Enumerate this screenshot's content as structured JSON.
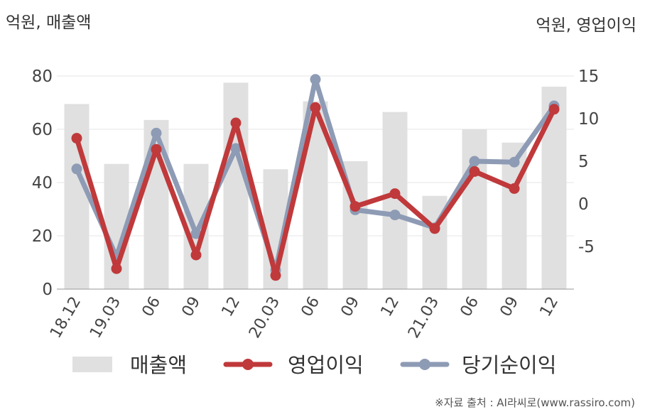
{
  "labels": {
    "left_unit": "억원, 매출액",
    "right_unit": "억원, 영업이익",
    "source": "※자료 출처 : AI라씨로(www.rassiro.com)"
  },
  "chart_data": {
    "type": "bar",
    "categories": [
      "18.12",
      "19.03",
      "06",
      "09",
      "12",
      "20.03",
      "06",
      "09",
      "12",
      "21.03",
      "06",
      "09",
      "12"
    ],
    "y_left": {
      "ylim": [
        0,
        80
      ],
      "ticks": [
        0,
        20,
        40,
        60,
        80
      ]
    },
    "y_right": {
      "ylim": [
        -10,
        15
      ],
      "ticks": [
        -5,
        0,
        5,
        10,
        15
      ]
    },
    "grid": true,
    "legend_position": "bottom",
    "series": [
      {
        "name": "매출액",
        "type": "bar",
        "axis": "left",
        "color": "#e0e0e0",
        "values": [
          69.5,
          47,
          63.5,
          47,
          77.5,
          45,
          70.5,
          48,
          66.5,
          35,
          60,
          55,
          76
        ]
      },
      {
        "name": "영업이익",
        "type": "line",
        "axis": "right",
        "color": "#c0393b",
        "values": [
          7.7,
          -7.6,
          6.4,
          -6.0,
          9.5,
          -8.4,
          11.3,
          -0.3,
          1.2,
          -2.9,
          3.8,
          1.8,
          11.1
        ]
      },
      {
        "name": "당기순이익",
        "type": "line",
        "axis": "right",
        "color": "#8e9bb5",
        "values": [
          4.1,
          -6.2,
          8.3,
          -3.5,
          6.5,
          -7.8,
          14.6,
          -0.7,
          -1.3,
          -2.8,
          5.0,
          4.9,
          11.5
        ]
      }
    ]
  }
}
